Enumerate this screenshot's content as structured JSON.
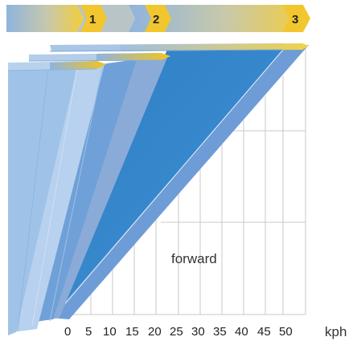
{
  "steps": [
    "1",
    "2",
    "3"
  ],
  "speed_ticks": [
    "0",
    "5",
    "10",
    "15",
    "20",
    "25",
    "30",
    "35",
    "40",
    "45",
    "50"
  ],
  "unit": "kph",
  "area_label": "forward",
  "colors": {
    "band_start": "#7aa6d6",
    "band_end": "#f5d040",
    "arrow_yellow": "#f5c518",
    "wedge_light": "#9fc3e8",
    "wedge_pale": "#b7d1ee",
    "wedge_mid": "#6fa0d8",
    "wedge_steel": "#8aabd8",
    "wedge_main": "#3a88cc",
    "side_face": "#6e9cd6",
    "grid": "#c8c8c8"
  }
}
